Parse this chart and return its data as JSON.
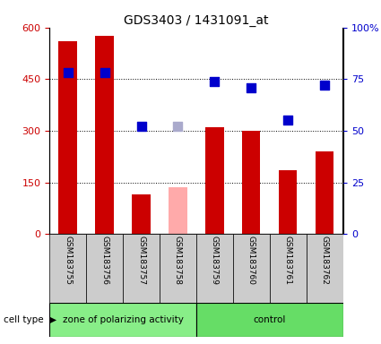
{
  "title": "GDS3403 / 1431091_at",
  "samples": [
    "GSM183755",
    "GSM183756",
    "GSM183757",
    "GSM183758",
    "GSM183759",
    "GSM183760",
    "GSM183761",
    "GSM183762"
  ],
  "counts": [
    560,
    575,
    115,
    null,
    310,
    300,
    185,
    240
  ],
  "counts_absent": [
    null,
    null,
    null,
    135,
    null,
    null,
    null,
    null
  ],
  "percentile_ranks": [
    78,
    78,
    52,
    null,
    74,
    71,
    55,
    72
  ],
  "percentile_ranks_absent": [
    null,
    null,
    null,
    52,
    null,
    null,
    null,
    null
  ],
  "detection_calls": [
    "P",
    "P",
    "P",
    "A",
    "P",
    "P",
    "P",
    "P"
  ],
  "groups": [
    "zone",
    "zone",
    "zone",
    "zone",
    "control",
    "control",
    "control",
    "control"
  ],
  "group_labels": [
    "zone of polarizing activity",
    "control"
  ],
  "ylim_left": [
    0,
    600
  ],
  "ylim_right": [
    0,
    100
  ],
  "yticks_left": [
    0,
    150,
    300,
    450,
    600
  ],
  "yticks_right": [
    0,
    25,
    50,
    75,
    100
  ],
  "ytick_labels_left": [
    "0",
    "150",
    "300",
    "450",
    "600"
  ],
  "ytick_labels_right": [
    "0",
    "25",
    "50",
    "75",
    "100%"
  ],
  "bar_color_present": "#cc0000",
  "bar_color_absent": "#ffaaaa",
  "dot_color_present": "#0000cc",
  "dot_color_absent": "#aaaacc",
  "bg_color_xtick": "#cccccc",
  "zone_color": "#88ee88",
  "control_color": "#66dd66",
  "bar_width": 0.5,
  "dot_size": 45,
  "cell_type_label": "cell type"
}
